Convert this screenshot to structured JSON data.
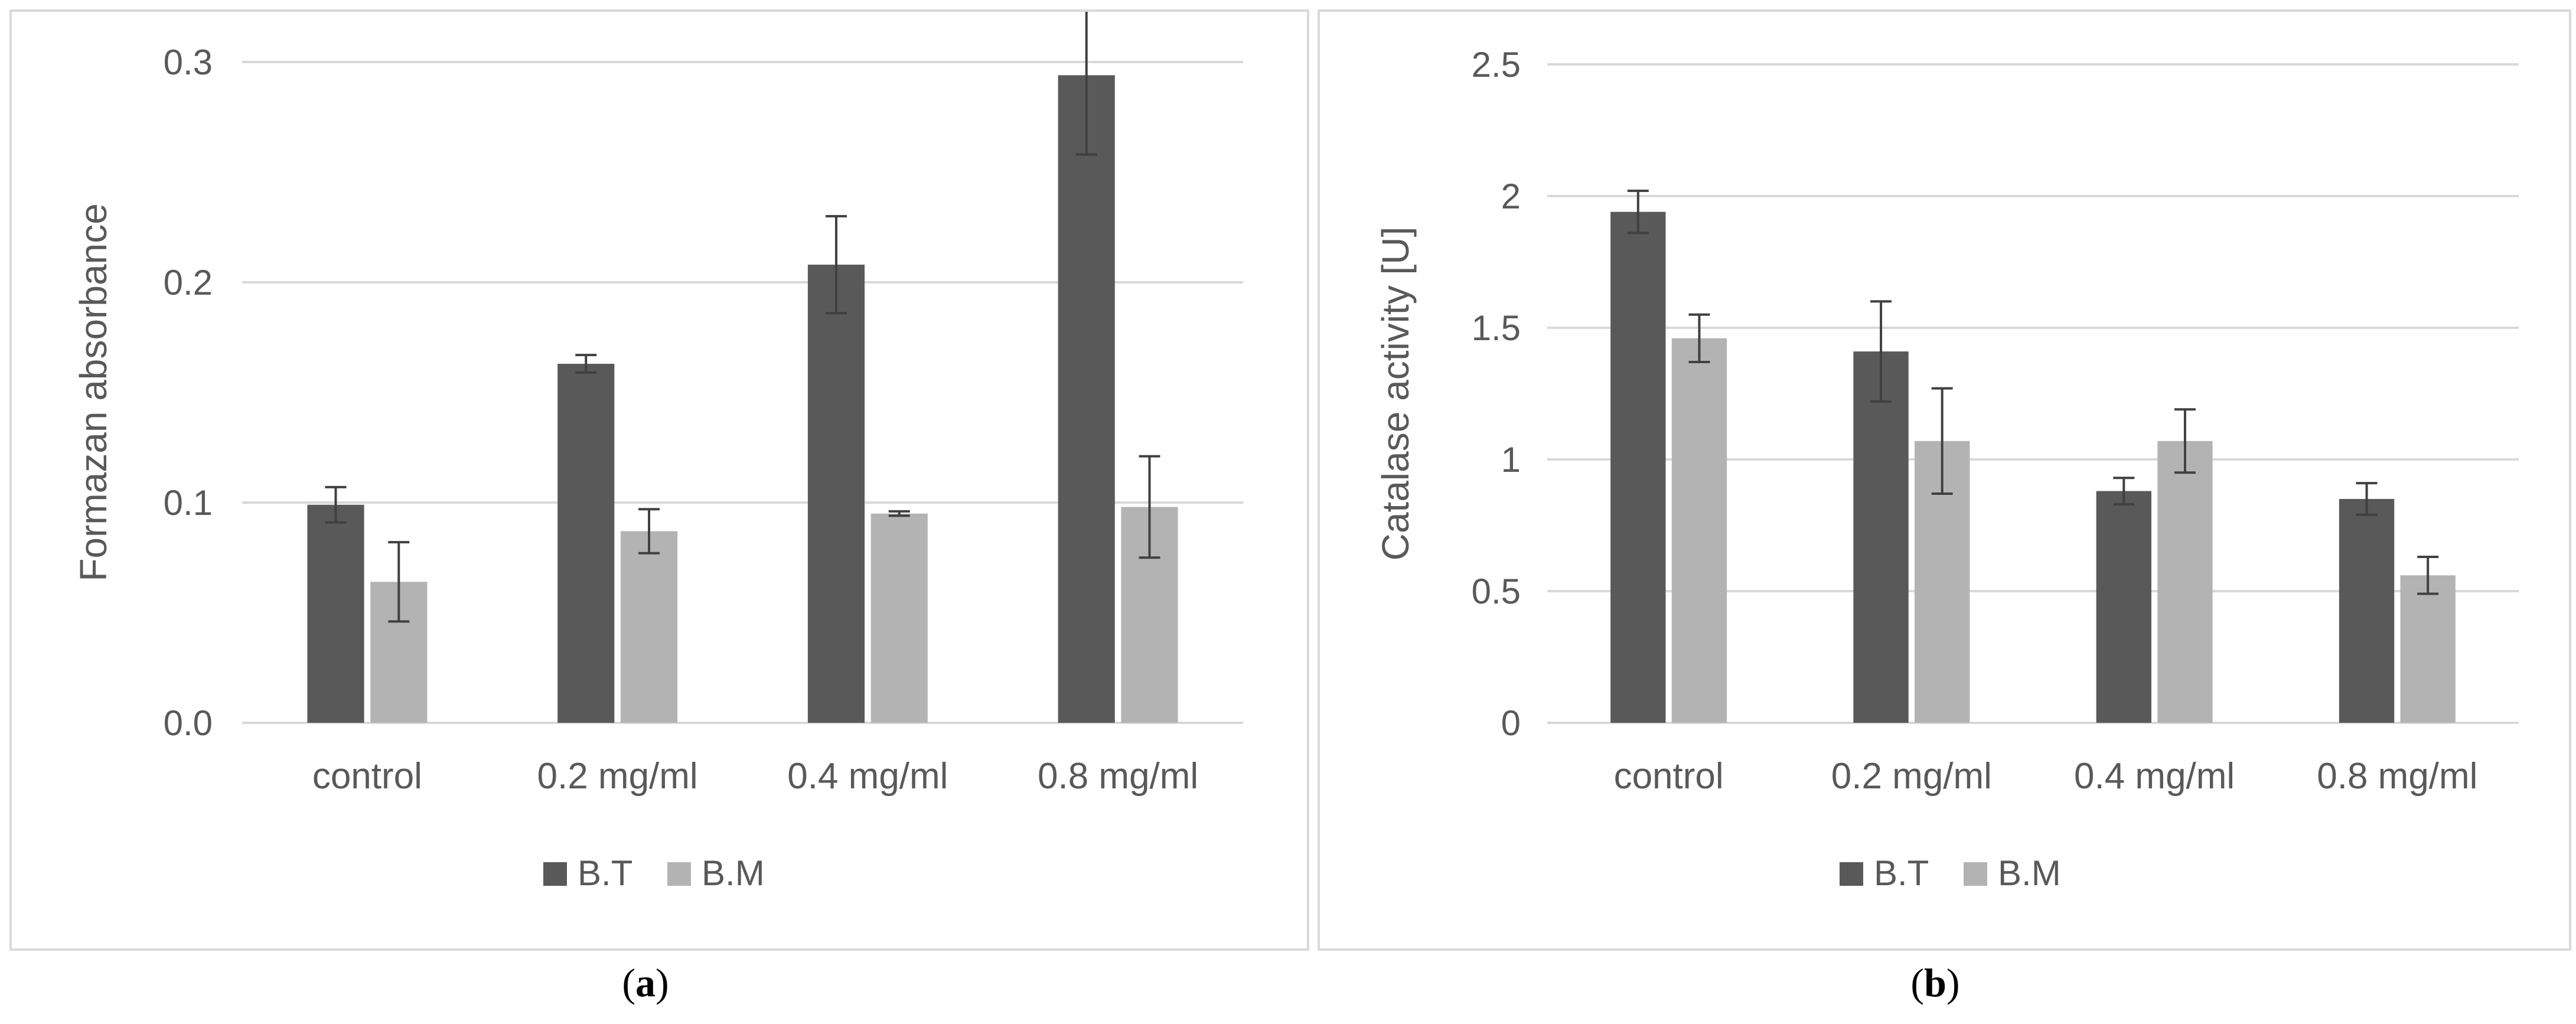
{
  "chart_data": [
    {
      "type": "bar",
      "panel_label": "a",
      "title": "",
      "xlabel": "",
      "ylabel": "Formazan absorbance",
      "categories": [
        "control",
        "0.2 mg/ml",
        "0.4 mg/ml",
        "0.8 mg/ml"
      ],
      "series": [
        {
          "name": "B.T",
          "color": "#595959",
          "values": [
            0.099,
            0.163,
            0.208,
            0.294
          ],
          "errors": [
            0.008,
            0.004,
            0.022,
            0.036
          ]
        },
        {
          "name": "B.M",
          "color": "#b3b3b3",
          "values": [
            0.064,
            0.087,
            0.095,
            0.098
          ],
          "errors": [
            0.018,
            0.01,
            0.001,
            0.023
          ]
        }
      ],
      "ylim": [
        0,
        0.3
      ],
      "yticks": [
        "0.0",
        "0.1",
        "0.2",
        "0.3"
      ],
      "ytick_values": [
        0,
        0.1,
        0.2,
        0.3
      ],
      "grid": true,
      "legend_position": "bottom"
    },
    {
      "type": "bar",
      "panel_label": "b",
      "title": "",
      "xlabel": "",
      "ylabel": "Catalase activity [U]",
      "categories": [
        "control",
        "0.2 mg/ml",
        "0.4 mg/ml",
        "0.8 mg/ml"
      ],
      "series": [
        {
          "name": "B.T",
          "color": "#595959",
          "values": [
            1.94,
            1.41,
            0.88,
            0.85
          ],
          "errors": [
            0.08,
            0.19,
            0.05,
            0.06
          ]
        },
        {
          "name": "B.M",
          "color": "#b3b3b3",
          "values": [
            1.46,
            1.07,
            1.07,
            0.56
          ],
          "errors": [
            0.09,
            0.2,
            0.12,
            0.07
          ]
        }
      ],
      "ylim": [
        0,
        2.5
      ],
      "yticks": [
        "0",
        "0.5",
        "1",
        "1.5",
        "2",
        "2.5"
      ],
      "ytick_values": [
        0,
        0.5,
        1,
        1.5,
        2,
        2.5
      ],
      "grid": true,
      "legend_position": "bottom"
    }
  ]
}
